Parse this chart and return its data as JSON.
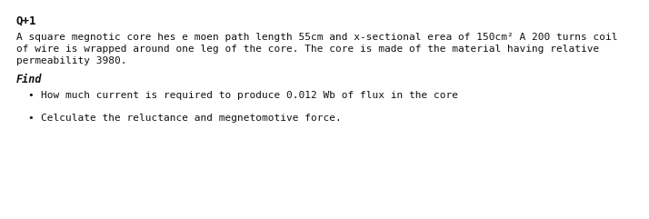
{
  "background_color": "#ffffff",
  "title": "Q+1",
  "title_fontsize": 9,
  "body_line1": "A square megnotic core hes e moen path length 55cm and x-sectional erea of 150cm² A 200 turns coil",
  "body_line2": "of wire is wrapped around one leg of the core. The core is made of the material having relative",
  "body_line3": "permeability 3980.",
  "body_fontsize": 8,
  "find_label": "Find",
  "find_fontsize": 8.5,
  "bullet1": "How much current is required to produce 0.012 Wb of flux in the core",
  "bullet2": "Celculate the reluctance and megnetomotive force.",
  "bullet_fontsize": 8,
  "text_color": "#111111"
}
